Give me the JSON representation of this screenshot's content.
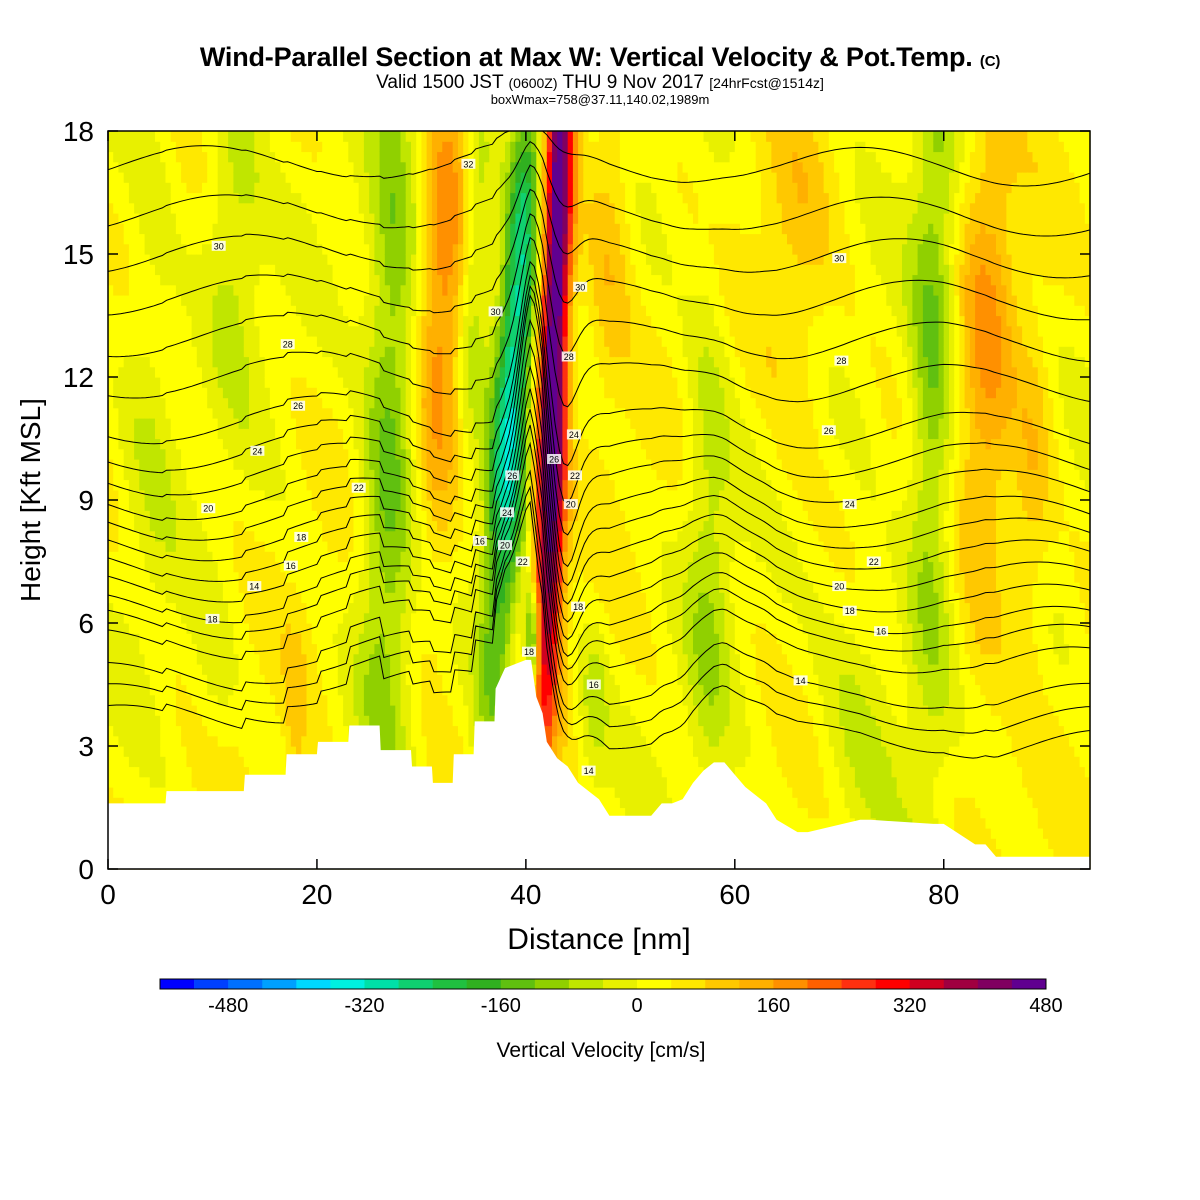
{
  "title": {
    "main": "Wind-Parallel Section at Max W: Vertical Velocity & Pot.Temp.",
    "mark": "(C)"
  },
  "subtitle": {
    "valid": "Valid 1500 JST",
    "zulu": "(0600Z)",
    "date": "THU 9 Nov 2017",
    "forecast": "[24hrFcst@1514z]"
  },
  "subtitle2": "boxWmax=758@37.11,140.02,1989m",
  "chart_data": {
    "type": "heatmap",
    "xlabel": "Distance [nm]",
    "ylabel": "Height [Kft MSL]",
    "xlim": [
      0,
      94
    ],
    "ylim": [
      0,
      18
    ],
    "x_ticks": [
      "0",
      "20",
      "40",
      "60",
      "80"
    ],
    "y_ticks": [
      "0",
      "3",
      "6",
      "9",
      "12",
      "15",
      "18"
    ],
    "colorbar": {
      "label": "Vertical Velocity [cm/s]",
      "min": -560,
      "step": 40,
      "tick_labels": [
        "-480",
        "-320",
        "-160",
        "0",
        "160",
        "320",
        "480"
      ],
      "colors": [
        "#0000ff",
        "#0040ff",
        "#0070ff",
        "#00a0ff",
        "#00d8ff",
        "#00f0e0",
        "#00e0a8",
        "#10d070",
        "#20c040",
        "#30b020",
        "#60c010",
        "#90d000",
        "#c0e600",
        "#e8f000",
        "#ffff00",
        "#ffe800",
        "#ffc800",
        "#ffb000",
        "#ff9000",
        "#ff6000",
        "#ff3010",
        "#ff0000",
        "#d00020",
        "#a00040",
        "#800060",
        "#600090"
      ]
    },
    "terrain_kft": {
      "x": [
        0,
        5.5,
        5.6,
        13,
        13.1,
        17,
        17.1,
        20,
        20.1,
        23,
        23.1,
        26,
        26.1,
        29,
        29.1,
        31,
        31.1,
        33,
        33.1,
        35,
        35.1,
        37,
        37.1,
        38,
        40,
        40.5,
        41,
        41.6,
        42,
        43,
        44,
        45,
        46,
        47,
        48,
        52,
        53,
        54,
        55,
        56,
        57,
        58,
        59,
        60,
        61,
        62,
        63,
        64,
        66,
        67,
        72,
        73,
        79,
        80,
        83,
        84,
        85,
        86,
        90,
        92,
        94
      ],
      "y": [
        1.6,
        1.6,
        1.9,
        1.9,
        2.3,
        2.3,
        2.8,
        2.8,
        3.1,
        3.1,
        3.5,
        3.5,
        2.9,
        2.9,
        2.5,
        2.5,
        2.1,
        2.1,
        2.8,
        2.8,
        3.6,
        3.6,
        4.4,
        4.9,
        5.1,
        5.1,
        4.2,
        3.8,
        3.1,
        2.7,
        2.5,
        2.1,
        1.9,
        1.7,
        1.3,
        1.3,
        1.6,
        1.6,
        1.7,
        2.1,
        2.4,
        2.6,
        2.6,
        2.3,
        2.0,
        1.8,
        1.6,
        1.2,
        0.9,
        0.9,
        1.2,
        1.2,
        1.1,
        1.1,
        0.6,
        0.6,
        0.3,
        0.3,
        0.3,
        0.3,
        0.3
      ]
    },
    "w_features": [
      {
        "x": 42.8,
        "y": 14.0,
        "sx": 1.0,
        "sy": 6.0,
        "tilt": 0.12,
        "w": 520
      },
      {
        "x": 42.5,
        "y": 7.0,
        "sx": 0.9,
        "sy": 2.8,
        "tilt": 0.12,
        "w": 160
      },
      {
        "x": 38.8,
        "y": 12.0,
        "sx": 1.3,
        "sy": 6.0,
        "tilt": 0.24,
        "w": -330
      },
      {
        "x": 40.6,
        "y": 5.6,
        "sx": 0.5,
        "sy": 0.9,
        "tilt": 0.0,
        "w": -300
      },
      {
        "x": 32.0,
        "y": 14.0,
        "sx": 1.6,
        "sy": 5.0,
        "tilt": 0.1,
        "w": 150
      },
      {
        "x": 48.0,
        "y": 15.5,
        "sx": 1.6,
        "sy": 3.0,
        "tilt": 0.05,
        "w": 90
      },
      {
        "x": 66.0,
        "y": 14.5,
        "sx": 2.5,
        "sy": 3.2,
        "tilt": 0.0,
        "w": 70
      },
      {
        "x": 84.0,
        "y": 12.5,
        "sx": 2.0,
        "sy": 6.0,
        "tilt": 0.05,
        "w": 120
      },
      {
        "x": 88.5,
        "y": 9.0,
        "sx": 1.3,
        "sy": 3.0,
        "tilt": 0.1,
        "w": 80
      },
      {
        "x": 27.0,
        "y": 11.0,
        "sx": 1.8,
        "sy": 6.5,
        "tilt": 0.1,
        "w": -160
      },
      {
        "x": 35.2,
        "y": 15.0,
        "sx": 1.0,
        "sy": 3.0,
        "tilt": 0.15,
        "w": -110
      },
      {
        "x": 79.0,
        "y": 12.0,
        "sx": 1.6,
        "sy": 6.0,
        "tilt": 0.05,
        "w": -150
      },
      {
        "x": 57.5,
        "y": 8.0,
        "sx": 1.6,
        "sy": 5.0,
        "tilt": 0.0,
        "w": -90
      },
      {
        "x": 72.0,
        "y": 4.0,
        "sx": 3.0,
        "sy": 2.5,
        "tilt": 0.0,
        "w": -70
      },
      {
        "x": 12.0,
        "y": 16.0,
        "sx": 2.0,
        "sy": 3.0,
        "tilt": 0.0,
        "w": -90
      },
      {
        "x": 4.0,
        "y": 12.0,
        "sx": 2.0,
        "sy": 4.0,
        "tilt": 0.0,
        "w": -60
      },
      {
        "x": 46.5,
        "y": 4.0,
        "sx": 1.0,
        "sy": 1.5,
        "tilt": 0.0,
        "w": -80
      },
      {
        "x": 18.0,
        "y": 3.5,
        "sx": 0.8,
        "sy": 1.5,
        "tilt": 0.0,
        "w": 60
      },
      {
        "x": 10.0,
        "y": 4.5,
        "sx": 1.5,
        "sy": 1.5,
        "tilt": 0.0,
        "w": -40
      }
    ],
    "theta_contours": [
      {
        "value": "14",
        "base_kft": 3.8,
        "label_at": [
          [
            14,
            6.9
          ],
          [
            46,
            2.4
          ],
          [
            66.3,
            4.6
          ]
        ]
      },
      {
        "value": "16",
        "base_kft": 4.3,
        "label_at": [
          [
            46.5,
            4.5
          ]
        ]
      },
      {
        "value": "18",
        "base_kft": 4.8,
        "label_at": [
          [
            10,
            6.1
          ],
          [
            40.3,
            5.3
          ],
          [
            45,
            6.4
          ]
        ]
      },
      {
        "value": "16",
        "base_kft": 5.6,
        "label_at": [
          [
            17.5,
            7.4
          ],
          [
            35.6,
            8.0
          ],
          [
            74,
            5.8
          ]
        ]
      },
      {
        "value": "18",
        "base_kft": 6.1,
        "label_at": [
          [
            18.5,
            8.1
          ],
          [
            71,
            6.3
          ]
        ]
      },
      {
        "value": "20",
        "base_kft": 6.5,
        "label_at": [
          [
            9.6,
            8.8
          ],
          [
            38,
            7.9
          ],
          [
            70,
            6.9
          ]
        ]
      },
      {
        "value": "22",
        "base_kft": 7.0,
        "label_at": [
          [
            24,
            9.3
          ],
          [
            39.7,
            7.5
          ],
          [
            73.3,
            7.5
          ]
        ]
      },
      {
        "value": "20",
        "base_kft": 7.5,
        "label_at": [
          [
            44.3,
            8.9
          ]
        ]
      },
      {
        "value": "24",
        "base_kft": 8.0,
        "label_at": [
          [
            14.3,
            10.2
          ],
          [
            38.2,
            8.7
          ],
          [
            71,
            8.9
          ]
        ]
      },
      {
        "value": "22",
        "base_kft": 8.5,
        "label_at": [
          [
            44.7,
            9.6
          ]
        ]
      },
      {
        "value": "26",
        "base_kft": 9.0,
        "label_at": [
          [
            18.2,
            11.3
          ],
          [
            38.7,
            9.6
          ],
          [
            69,
            10.7
          ]
        ]
      },
      {
        "value": "24",
        "base_kft": 9.6,
        "label_at": [
          [
            44.6,
            10.6
          ]
        ]
      },
      {
        "value": "26",
        "base_kft": 10.2,
        "label_at": [
          [
            42.7,
            10.0
          ]
        ]
      },
      {
        "value": "28",
        "base_kft": 10.9,
        "label_at": [
          [
            17.2,
            12.8
          ],
          [
            44.1,
            12.5
          ],
          [
            70.2,
            12.4
          ]
        ]
      },
      {
        "value": "30",
        "base_kft": 12.0,
        "label_at": [
          [
            37.1,
            13.6
          ],
          [
            45.2,
            14.2
          ],
          [
            10.6,
            15.2
          ],
          [
            70,
            14.9
          ]
        ]
      },
      {
        "value": "32",
        "base_kft": 13.0,
        "label_at": [
          [
            34.5,
            17.2
          ]
        ]
      },
      {
        "value": "",
        "base_kft": 14.0,
        "label_at": []
      },
      {
        "value": "",
        "base_kft": 15.0,
        "label_at": []
      },
      {
        "value": "",
        "base_kft": 16.0,
        "label_at": []
      },
      {
        "value": "",
        "base_kft": 17.2,
        "label_at": []
      }
    ]
  }
}
